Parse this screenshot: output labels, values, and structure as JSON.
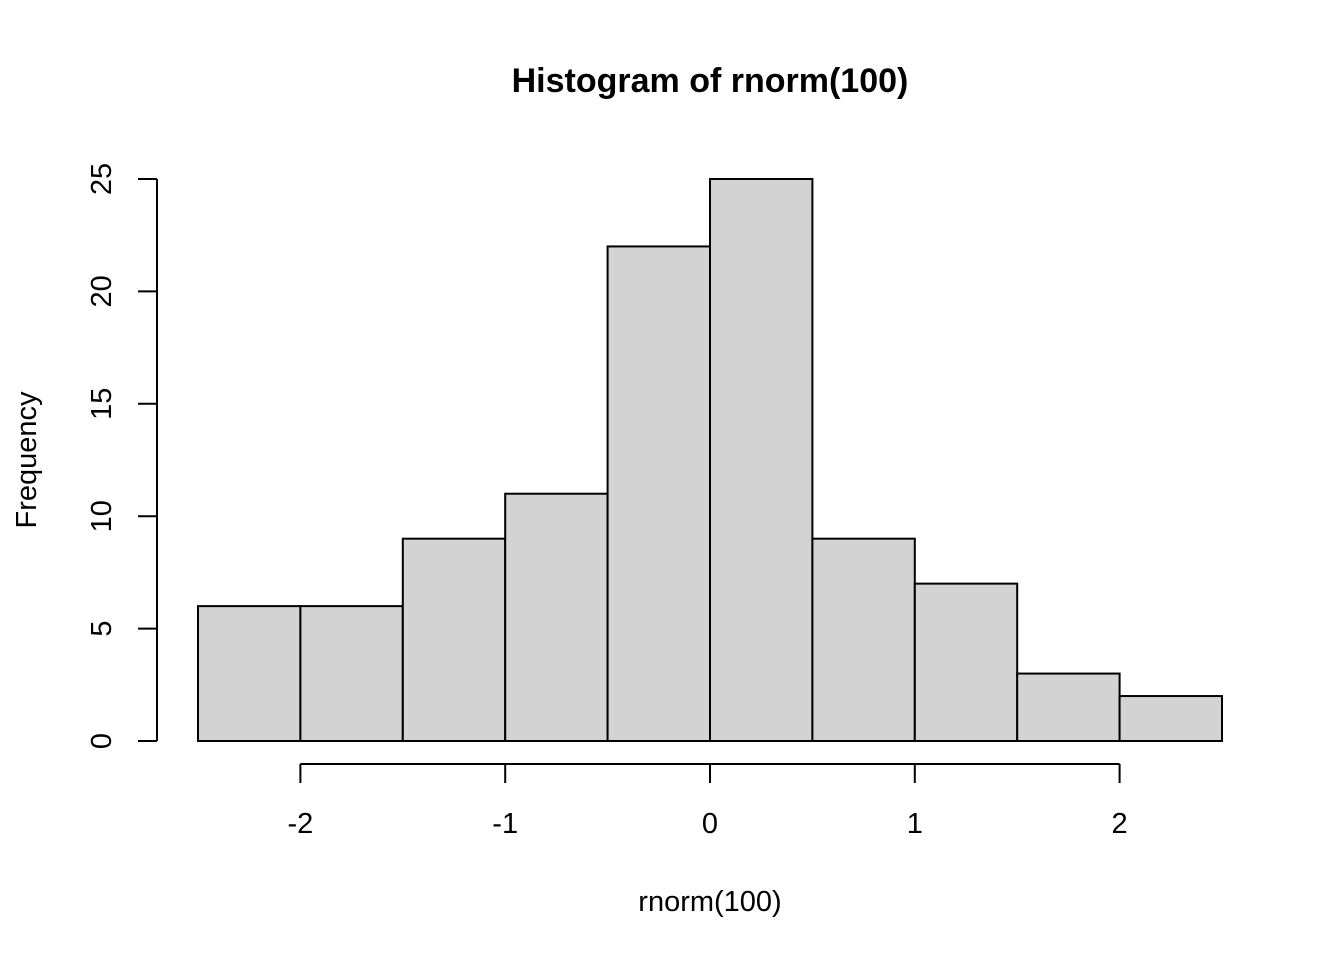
{
  "chart_data": {
    "type": "bar",
    "subtype": "histogram",
    "title": "Histogram of rnorm(100)",
    "xlabel": "rnorm(100)",
    "ylabel": "Frequency",
    "bins": [
      {
        "start": -2.5,
        "end": -2.0,
        "count": 6
      },
      {
        "start": -2.0,
        "end": -1.5,
        "count": 6
      },
      {
        "start": -1.5,
        "end": -1.0,
        "count": 9
      },
      {
        "start": -1.0,
        "end": -0.5,
        "count": 11
      },
      {
        "start": -0.5,
        "end": 0.0,
        "count": 22
      },
      {
        "start": 0.0,
        "end": 0.5,
        "count": 25
      },
      {
        "start": 0.5,
        "end": 1.0,
        "count": 9
      },
      {
        "start": 1.0,
        "end": 1.5,
        "count": 7
      },
      {
        "start": 1.5,
        "end": 2.0,
        "count": 3
      },
      {
        "start": 2.0,
        "end": 2.5,
        "count": 2
      }
    ],
    "x_ticks": [
      -2,
      -1,
      0,
      1,
      2
    ],
    "x_tick_labels": [
      "-2",
      "-1",
      "0",
      "1",
      "2"
    ],
    "y_ticks": [
      0,
      5,
      10,
      15,
      20,
      25
    ],
    "y_tick_labels": [
      "0",
      "5",
      "10",
      "15",
      "20",
      "25"
    ],
    "xlim": [
      -2.5,
      2.5
    ],
    "ylim": [
      0,
      25
    ],
    "grid": false,
    "legend": "none",
    "bar_fill": "#d3d3d3",
    "bar_stroke": "#000000"
  }
}
